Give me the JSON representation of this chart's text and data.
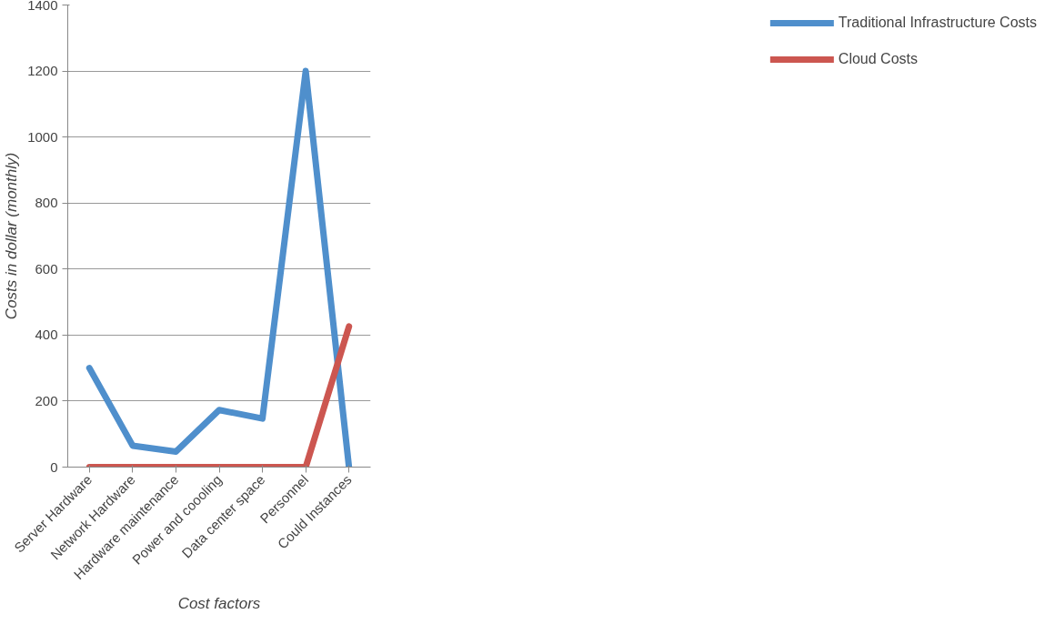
{
  "chart_data": {
    "type": "line",
    "xlabel": "Cost factors",
    "ylabel": "Costs in dollar (monthly)",
    "categories": [
      "Server Hardware",
      "Network Hardware",
      "Hardware maintenance",
      "Power and coooling",
      "Data center space",
      "Personnel",
      "Could Instances"
    ],
    "series": [
      {
        "name": "Traditional Infrastructure Costs",
        "color": "#4f8fcc",
        "values": [
          300,
          65,
          47,
          173,
          147,
          1200,
          0
        ]
      },
      {
        "name": "Cloud Costs",
        "color": "#cc5650",
        "values": [
          0,
          0,
          0,
          0,
          0,
          0,
          426
        ]
      }
    ],
    "ylim": [
      0,
      1400
    ],
    "yticks": [
      0,
      200,
      400,
      600,
      800,
      1000,
      1200,
      1400
    ],
    "grid": "y",
    "legend": "right",
    "marker": "none",
    "line_style": "solid"
  }
}
